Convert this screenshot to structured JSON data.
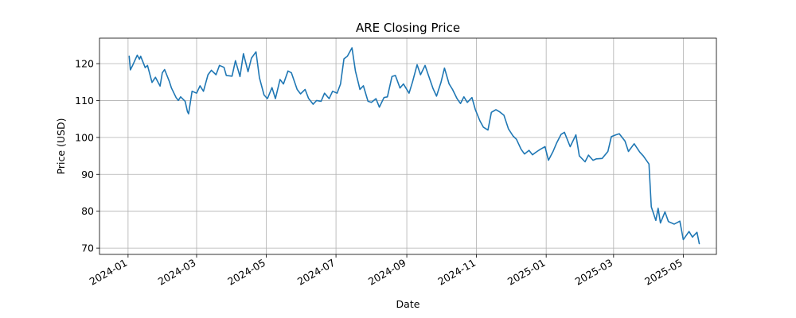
{
  "chart_data": {
    "type": "line",
    "title": "ARE Closing Price",
    "xlabel": "Date",
    "ylabel": "Price (USD)",
    "grid": true,
    "xlim": [
      "2023-12-07",
      "2025-05-30"
    ],
    "ylim": [
      68.3,
      126.9
    ],
    "x_ticks": [
      "2024-01",
      "2024-03",
      "2024-05",
      "2024-07",
      "2024-09",
      "2024-11",
      "2025-01",
      "2025-03",
      "2025-05"
    ],
    "y_ticks": [
      70,
      80,
      90,
      100,
      110,
      120
    ],
    "line_color": "#1f77b4",
    "series": [
      {
        "x": [
          "2024-01-02",
          "2024-01-03",
          "2024-01-05",
          "2024-01-09",
          "2024-01-11",
          "2024-01-12",
          "2024-01-16",
          "2024-01-18",
          "2024-01-22",
          "2024-01-25",
          "2024-01-29",
          "2024-01-31",
          "2024-02-02",
          "2024-02-06",
          "2024-02-08",
          "2024-02-12",
          "2024-02-14",
          "2024-02-16",
          "2024-02-20",
          "2024-02-22",
          "2024-02-23",
          "2024-02-26",
          "2024-03-01",
          "2024-03-04",
          "2024-03-07",
          "2024-03-11",
          "2024-03-14",
          "2024-03-18",
          "2024-03-21",
          "2024-03-25",
          "2024-03-27",
          "2024-04-01",
          "2024-04-04",
          "2024-04-08",
          "2024-04-11",
          "2024-04-15",
          "2024-04-18",
          "2024-04-22",
          "2024-04-25",
          "2024-04-29",
          "2024-05-02",
          "2024-05-06",
          "2024-05-09",
          "2024-05-13",
          "2024-05-16",
          "2024-05-20",
          "2024-05-23",
          "2024-05-28",
          "2024-05-31",
          "2024-06-04",
          "2024-06-07",
          "2024-06-11",
          "2024-06-14",
          "2024-06-18",
          "2024-06-21",
          "2024-06-25",
          "2024-06-28",
          "2024-07-02",
          "2024-07-05",
          "2024-07-08",
          "2024-07-11",
          "2024-07-15",
          "2024-07-18",
          "2024-07-22",
          "2024-07-25",
          "2024-07-29",
          "2024-08-01",
          "2024-08-05",
          "2024-08-08",
          "2024-08-12",
          "2024-08-15",
          "2024-08-19",
          "2024-08-22",
          "2024-08-26",
          "2024-08-29",
          "2024-09-03",
          "2024-09-06",
          "2024-09-10",
          "2024-09-13",
          "2024-09-17",
          "2024-09-20",
          "2024-09-24",
          "2024-09-27",
          "2024-10-01",
          "2024-10-04",
          "2024-10-08",
          "2024-10-11",
          "2024-10-15",
          "2024-10-18",
          "2024-10-21",
          "2024-10-24",
          "2024-10-28",
          "2024-10-31",
          "2024-11-04",
          "2024-11-07",
          "2024-11-11",
          "2024-11-14",
          "2024-11-18",
          "2024-11-21",
          "2024-11-25",
          "2024-11-29",
          "2024-12-03",
          "2024-12-06",
          "2024-12-10",
          "2024-12-13",
          "2024-12-17",
          "2024-12-20",
          "2024-12-24",
          "2024-12-27",
          "2024-12-31",
          "2025-01-03",
          "2025-01-07",
          "2025-01-10",
          "2025-01-14",
          "2025-01-17",
          "2025-01-22",
          "2025-01-27",
          "2025-01-30",
          "2025-02-04",
          "2025-02-07",
          "2025-02-11",
          "2025-02-14",
          "2025-02-19",
          "2025-02-24",
          "2025-02-27",
          "2025-03-03",
          "2025-03-06",
          "2025-03-11",
          "2025-03-14",
          "2025-03-19",
          "2025-03-24",
          "2025-03-27",
          "2025-04-01",
          "2025-04-03",
          "2025-04-07",
          "2025-04-09",
          "2025-04-11",
          "2025-04-15",
          "2025-04-18",
          "2025-04-23",
          "2025-04-28",
          "2025-05-01",
          "2025-05-06",
          "2025-05-09",
          "2025-05-13",
          "2025-05-15"
        ],
        "y": [
          122.0,
          118.3,
          119.5,
          122.3,
          121.2,
          122.0,
          118.9,
          119.5,
          114.9,
          116.3,
          113.9,
          117.5,
          118.4,
          115.3,
          113.4,
          110.8,
          110.0,
          111.0,
          109.8,
          107.0,
          106.4,
          112.5,
          112.0,
          114.0,
          112.5,
          117.0,
          118.2,
          117.0,
          119.5,
          119.0,
          116.8,
          116.6,
          120.8,
          116.5,
          122.7,
          117.8,
          121.5,
          123.2,
          116.2,
          111.5,
          110.5,
          113.5,
          110.5,
          115.7,
          114.5,
          118.0,
          117.5,
          113.0,
          111.8,
          113.0,
          110.6,
          109.0,
          110.0,
          109.8,
          112.0,
          110.5,
          112.5,
          112.0,
          114.5,
          121.3,
          122.0,
          124.3,
          118.0,
          113.0,
          114.0,
          109.8,
          109.5,
          110.5,
          108.2,
          110.8,
          111.0,
          116.5,
          116.8,
          113.4,
          114.5,
          112.0,
          115.0,
          119.7,
          117.0,
          119.5,
          116.8,
          113.2,
          111.2,
          115.0,
          118.8,
          114.5,
          113.0,
          110.5,
          109.2,
          111.0,
          109.5,
          110.8,
          107.5,
          104.5,
          102.8,
          102.0,
          106.8,
          107.5,
          107.0,
          106.0,
          102.3,
          100.4,
          99.5,
          96.8,
          95.5,
          96.5,
          95.3,
          96.2,
          96.8,
          97.5,
          93.8,
          96.2,
          98.4,
          100.8,
          101.4,
          97.5,
          100.7,
          95.0,
          93.4,
          95.2,
          93.8,
          94.2,
          94.3,
          96.2,
          100.2,
          100.7,
          101.0,
          99.0,
          96.2,
          98.3,
          96.0,
          95.0,
          92.8,
          81.2,
          77.5,
          80.8,
          76.8,
          79.8,
          77.2,
          76.5,
          77.3,
          72.3,
          74.5,
          73.0,
          74.3,
          71.2
        ]
      }
    ]
  }
}
